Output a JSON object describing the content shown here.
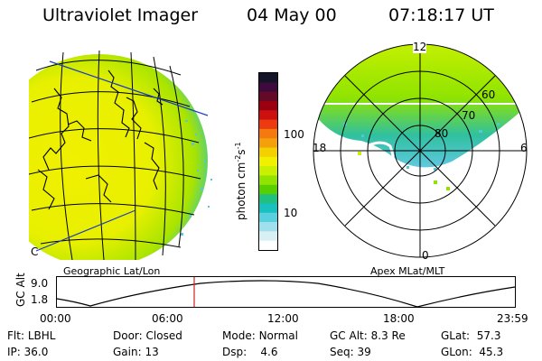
{
  "header": {
    "instrument": "Ultraviolet Imager",
    "date": "04 May 00",
    "time": "07:18:17 UT"
  },
  "colorbar": {
    "unit_label": "photon cm",
    "unit_sup1": "-2",
    "unit_mid": "s",
    "unit_sup2": "-1",
    "ticks": [
      "100",
      "10"
    ],
    "colors": [
      "#141428",
      "#3c0a3c",
      "#640a28",
      "#9a0010",
      "#cc1010",
      "#ee3a10",
      "#f47a10",
      "#f4a00a",
      "#f4d000",
      "#f0f000",
      "#c8f000",
      "#90e400",
      "#58d000",
      "#20c080",
      "#18c0c0",
      "#58d0e0",
      "#a0e0ec",
      "#d8f0f4",
      "#ffffff"
    ]
  },
  "map_left": {
    "caption": "Geographic Lat/Lon",
    "corner_label": "C"
  },
  "map_right": {
    "caption": "Apex MLat/MLT",
    "mlt_labels": {
      "top": "12",
      "left": "18",
      "right": "6",
      "bottom": "0"
    },
    "lat_labels": [
      "60",
      "70",
      "80"
    ]
  },
  "altitude_plot": {
    "axis_label": "GC Alt",
    "y_ticks": [
      "9.0",
      "1.8"
    ],
    "x_ticks": [
      "00:00",
      "06:00",
      "12:00",
      "18:00",
      "23:59"
    ],
    "marker_color": "#d02020"
  },
  "status": {
    "flt_label": "Flt:",
    "flt_value": "LBHL",
    "door_label": "Door:",
    "door_value": "Closed",
    "mode_label": "Mode:",
    "mode_value": "Normal",
    "gcalt_label": "GC Alt:",
    "gcalt_value": "8.3 Re",
    "glat_label": "GLat:",
    "glat_value": "57.3",
    "ip_label": "IP:",
    "ip_value": "36.0",
    "gain_label": "Gain:",
    "gain_value": "13",
    "dsp_label": "Dsp:",
    "dsp_value": "4.6",
    "seq_label": "Seq:",
    "seq_value": "39",
    "glon_label": "GLon:",
    "glon_value": "45.3"
  }
}
